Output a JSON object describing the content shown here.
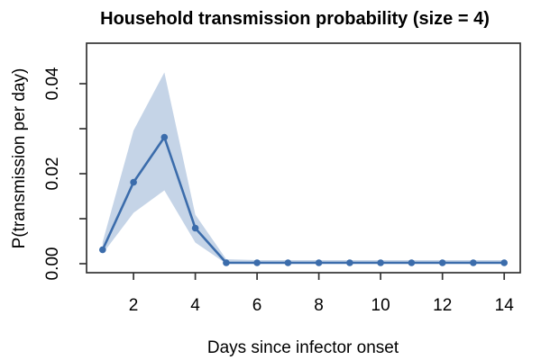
{
  "figure": {
    "background": "#ffffff"
  },
  "chart_data": {
    "type": "line",
    "title": "Household transmission probability (size = 4)",
    "xlabel": "Days since infector onset",
    "ylabel": "P(transmission per day)",
    "x": [
      1,
      2,
      3,
      4,
      5,
      6,
      7,
      8,
      9,
      10,
      11,
      12,
      13,
      14
    ],
    "series": [
      {
        "name": "transmission-probability-estimate",
        "values": [
          0.0031,
          0.0181,
          0.0281,
          0.0079,
          0.0002,
          0.0002,
          0.0002,
          0.0002,
          0.0002,
          0.0002,
          0.0002,
          0.0002,
          0.0002,
          0.0002
        ],
        "marker": "filled-circle"
      }
    ],
    "band": {
      "name": "uncertainty-band",
      "lower": [
        0.0022,
        0.0113,
        0.0163,
        0.0047,
        0.0,
        0.0,
        0.0,
        0.0,
        0.0,
        0.0,
        0.0,
        0.0,
        0.0,
        0.0
      ],
      "upper": [
        0.0048,
        0.0296,
        0.0425,
        0.0109,
        0.001,
        0.0008,
        0.0008,
        0.0008,
        0.0008,
        0.0008,
        0.0008,
        0.0008,
        0.0008,
        0.0008
      ]
    },
    "xticks": {
      "values": [
        2,
        4,
        6,
        8,
        10,
        12,
        14
      ],
      "labels": [
        "2",
        "4",
        "6",
        "8",
        "10",
        "12",
        "14"
      ]
    },
    "yticks": {
      "values": [
        0.0,
        0.01,
        0.02,
        0.03,
        0.04
      ],
      "labels": [
        "0.00",
        "",
        "0.02",
        "",
        "0.04"
      ]
    },
    "xlim": [
      0.48,
      14.52
    ],
    "ylim": [
      -0.002,
      0.049
    ],
    "grid": false,
    "legend": "none",
    "colors": {
      "line": "#3B6CAB",
      "marker": "#3B6CAB",
      "band": "#C5D4E7",
      "axis": "#333333",
      "text": "#000000"
    }
  }
}
